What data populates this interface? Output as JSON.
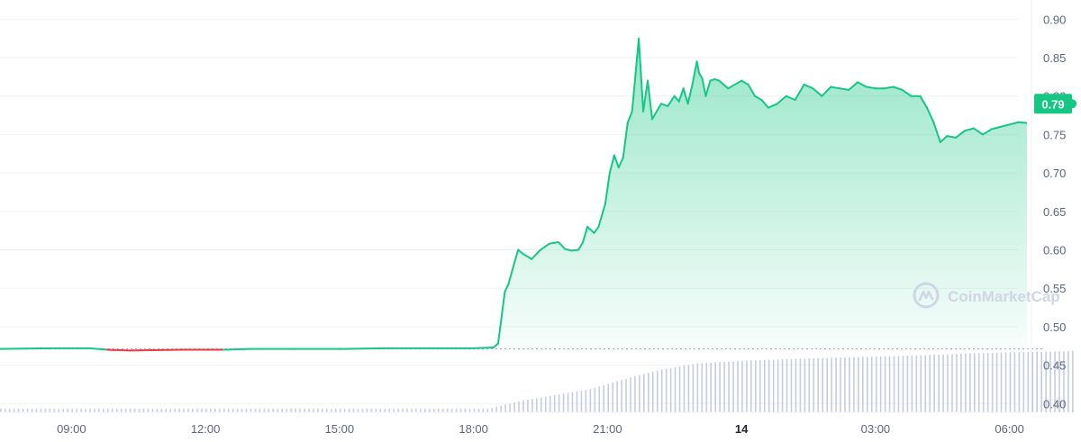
{
  "chart_data": {
    "type": "area",
    "title": "",
    "xlabel": "",
    "ylabel": "",
    "ylim": [
      0.35,
      0.925
    ],
    "y_ticks": [
      "0.90",
      "0.85",
      "0.80",
      "0.75",
      "0.70",
      "0.65",
      "0.60",
      "0.55",
      "0.50",
      "0.45",
      "0.40"
    ],
    "y_tick_values": [
      0.9,
      0.85,
      0.8,
      0.75,
      0.7,
      0.65,
      0.6,
      0.55,
      0.5,
      0.45,
      0.4
    ],
    "x_range_hours": [
      7.4,
      31.6
    ],
    "x_ticks": [
      {
        "label": "09:00",
        "hour": 9,
        "bold": false
      },
      {
        "label": "12:00",
        "hour": 12,
        "bold": false
      },
      {
        "label": "15:00",
        "hour": 15,
        "bold": false
      },
      {
        "label": "18:00",
        "hour": 18,
        "bold": false
      },
      {
        "label": "21:00",
        "hour": 21,
        "bold": false
      },
      {
        "label": "14",
        "hour": 24,
        "bold": true
      },
      {
        "label": "03:00",
        "hour": 27,
        "bold": false
      },
      {
        "label": "06:00",
        "hour": 30,
        "bold": false
      }
    ],
    "reference_price": 0.471,
    "current_price": 0.79,
    "current_price_label": "0.79",
    "grid": true,
    "series": [
      {
        "type": "price",
        "x_hours": [
          7.4,
          8.5,
          9.4,
          9.8,
          10.3,
          11.5,
          12.4,
          13.0,
          14.0,
          15.0,
          16.0,
          17.0,
          18.0,
          18.45,
          18.55,
          18.6,
          18.7,
          18.78,
          18.9,
          19.0,
          19.1,
          19.3,
          19.5,
          19.7,
          19.9,
          20.05,
          20.2,
          20.35,
          20.45,
          20.55,
          20.7,
          20.8,
          20.95,
          21.05,
          21.15,
          21.25,
          21.35,
          21.45,
          21.55,
          21.63,
          21.7,
          21.8,
          21.9,
          22.0,
          22.1,
          22.2,
          22.35,
          22.5,
          22.6,
          22.7,
          22.8,
          22.9,
          23.0,
          23.05,
          23.12,
          23.2,
          23.3,
          23.4,
          23.5,
          23.6,
          23.7,
          23.85,
          24.0,
          24.15,
          24.3,
          24.45,
          24.6,
          24.8,
          25.0,
          25.2,
          25.4,
          25.6,
          25.8,
          26.0,
          26.2,
          26.4,
          26.6,
          26.8,
          27.0,
          27.2,
          27.4,
          27.6,
          27.8,
          28.0,
          28.15,
          28.3,
          28.45,
          28.6,
          28.8,
          29.0,
          29.2,
          29.4,
          29.6,
          29.8,
          30.0,
          30.2,
          30.4,
          30.6,
          30.8,
          31.0,
          31.2,
          31.4
        ],
        "values": [
          0.471,
          0.472,
          0.472,
          0.47,
          0.469,
          0.47,
          0.47,
          0.471,
          0.471,
          0.471,
          0.472,
          0.472,
          0.472,
          0.473,
          0.478,
          0.5,
          0.545,
          0.555,
          0.58,
          0.6,
          0.595,
          0.588,
          0.6,
          0.608,
          0.61,
          0.601,
          0.599,
          0.6,
          0.61,
          0.63,
          0.622,
          0.63,
          0.66,
          0.7,
          0.723,
          0.707,
          0.72,
          0.765,
          0.78,
          0.83,
          0.875,
          0.78,
          0.82,
          0.77,
          0.78,
          0.79,
          0.787,
          0.8,
          0.793,
          0.81,
          0.79,
          0.815,
          0.845,
          0.83,
          0.823,
          0.8,
          0.82,
          0.822,
          0.82,
          0.815,
          0.81,
          0.815,
          0.82,
          0.815,
          0.8,
          0.795,
          0.785,
          0.79,
          0.8,
          0.795,
          0.815,
          0.81,
          0.8,
          0.812,
          0.81,
          0.808,
          0.818,
          0.812,
          0.81,
          0.81,
          0.812,
          0.808,
          0.8,
          0.8,
          0.785,
          0.766,
          0.74,
          0.748,
          0.746,
          0.755,
          0.758,
          0.75,
          0.757,
          0.76,
          0.763,
          0.766,
          0.765,
          0.77,
          0.768,
          0.77,
          0.778,
          0.79
        ]
      },
      {
        "type": "volume",
        "start_hour": 7.4,
        "end_hour": 31.45,
        "relative_levels": [
          [
            7.4,
            0.05
          ],
          [
            18.3,
            0.05
          ],
          [
            19.0,
            0.18
          ],
          [
            19.8,
            0.28
          ],
          [
            20.6,
            0.38
          ],
          [
            21.4,
            0.55
          ],
          [
            22.2,
            0.7
          ],
          [
            23.0,
            0.8
          ],
          [
            24.0,
            0.84
          ],
          [
            25.0,
            0.87
          ],
          [
            26.0,
            0.89
          ],
          [
            27.0,
            0.91
          ],
          [
            28.0,
            0.93
          ],
          [
            29.0,
            0.96
          ],
          [
            30.0,
            0.98
          ],
          [
            31.45,
            1.0
          ]
        ]
      }
    ]
  },
  "watermark": {
    "text": "CoinMarketCap",
    "icon": "coinmarketcap-logo-icon"
  },
  "colors": {
    "line_up": "#16c784",
    "line_down": "#ea3943",
    "area_top": "#16c784",
    "volume_bar": "#c5cce0",
    "reference_line": "#9aa1ad",
    "grid": "#eff2f5",
    "tag_bg": "#16c784"
  }
}
